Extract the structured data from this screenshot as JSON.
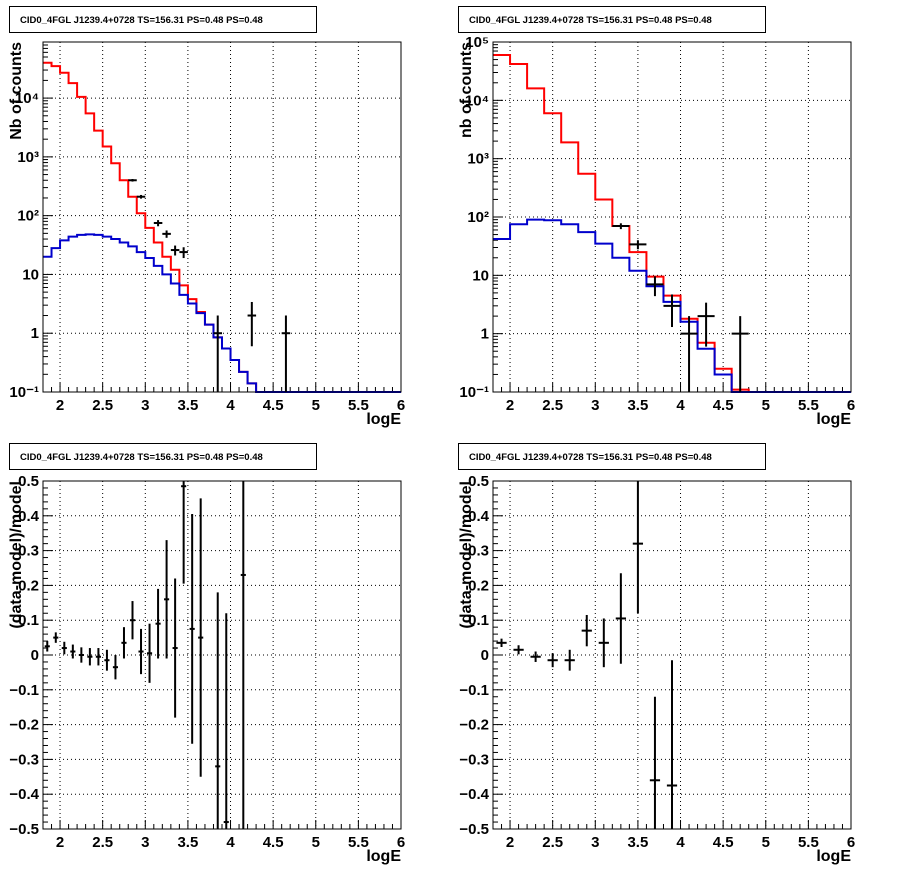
{
  "colors": {
    "data": "#000000",
    "model_total": "#ff0000",
    "model_bkg": "#0000cc",
    "grid": "#000000"
  },
  "chart_data": [
    {
      "type": "line",
      "title": "CID0_4FGL J1239.4+0728 TS=156.31 PS=0.48 PS=0.48",
      "xlabel": "logE",
      "ylabel": "Nb of counts",
      "yscale": "log",
      "xlim": [
        1.8,
        6
      ],
      "ylim": [
        0.1,
        90000
      ],
      "grid": true,
      "x_ticks": [
        "2",
        "2.5",
        "3",
        "3.5",
        "4",
        "4.5",
        "5",
        "5.5",
        "6"
      ],
      "y_ticks": [
        "10⁻¹",
        "1",
        "10",
        "10²",
        "10³",
        "10⁴"
      ],
      "bin_edges": [
        1.8,
        1.9,
        2.0,
        2.1,
        2.2,
        2.3,
        2.4,
        2.5,
        2.6,
        2.7,
        2.8,
        2.9,
        3.0,
        3.1,
        3.2,
        3.3,
        3.4,
        3.5,
        3.6,
        3.7,
        3.8,
        3.9,
        4.0,
        4.1,
        4.2,
        4.3,
        4.4,
        4.5,
        4.6,
        4.7,
        4.8,
        4.9,
        5.0,
        5.1,
        5.2,
        5.3,
        5.4,
        5.5,
        5.6,
        5.7,
        5.8,
        5.9,
        6.0
      ],
      "series": [
        {
          "name": "",
          "color": "#ff0000",
          "values": [
            40000,
            35000,
            27000,
            18000,
            10500,
            5500,
            2800,
            1500,
            780,
            400,
            210,
            110,
            62,
            35,
            20,
            12,
            6.5,
            3.8,
            2.3,
            1.4,
            0.85,
            0.55,
            0.35,
            0.22,
            0.14,
            0.1,
            0.1,
            0.1,
            0.1,
            0.1,
            0.1,
            0.1,
            0.1,
            0.1,
            0.1,
            0.1,
            0.1,
            0.1,
            0.1,
            0.1,
            0.1,
            0.1
          ]
        },
        {
          "name": "",
          "color": "#0000cc",
          "values": [
            20,
            28,
            38,
            44,
            47,
            48,
            47,
            44,
            40,
            35,
            30,
            24,
            19,
            14,
            10,
            7,
            4.5,
            3.2,
            2.2,
            1.4,
            0.85,
            0.55,
            0.35,
            0.22,
            0.14,
            0.1,
            0.1,
            0.1,
            0.1,
            0.1,
            0.1,
            0.1,
            0.1,
            0.1,
            0.1,
            0.1,
            0.1,
            0.1,
            0.1,
            0.1,
            0.1,
            0.1
          ]
        }
      ],
      "data_points": [
        {
          "x": 2.85,
          "y": 400,
          "yerr": 20
        },
        {
          "x": 2.95,
          "y": 210,
          "yerr": 15
        },
        {
          "x": 3.15,
          "y": 75,
          "yerr": 9
        },
        {
          "x": 3.25,
          "y": 49,
          "yerr": 7
        },
        {
          "x": 3.35,
          "y": 26,
          "yerr": 5
        },
        {
          "x": 3.45,
          "y": 24,
          "yerr": 5
        },
        {
          "x": 3.85,
          "y": 1,
          "yerr": 1
        },
        {
          "x": 4.25,
          "y": 2,
          "yerr": 1.4
        },
        {
          "x": 4.65,
          "y": 1,
          "yerr": 1
        }
      ]
    },
    {
      "type": "line",
      "title": "CID0_4FGL J1239.4+0728 TS=156.31 PS=0.48 PS=0.48",
      "xlabel": "logE",
      "ylabel": "nb of counts",
      "yscale": "log",
      "xlim": [
        1.8,
        6
      ],
      "ylim": [
        0.1,
        100000
      ],
      "grid": true,
      "x_ticks": [
        "2",
        "2.5",
        "3",
        "3.5",
        "4",
        "4.5",
        "5",
        "5.5",
        "6"
      ],
      "y_ticks": [
        "10⁻¹",
        "1",
        "10",
        "10²",
        "10³",
        "10⁴",
        "10⁵"
      ],
      "bin_edges": [
        1.8,
        2.0,
        2.2,
        2.4,
        2.6,
        2.8,
        3.0,
        3.2,
        3.4,
        3.6,
        3.8,
        4.0,
        4.2,
        4.4,
        4.6,
        4.8,
        5.0,
        5.2,
        5.4,
        5.6,
        5.8,
        6.0
      ],
      "series": [
        {
          "name": "",
          "color": "#ff0000",
          "values": [
            60000,
            42000,
            16000,
            6000,
            1900,
            550,
            200,
            70,
            25,
            9.5,
            4.5,
            1.8,
            0.7,
            0.25,
            0.11,
            0.1,
            0.1,
            0.1,
            0.1,
            0.1,
            0.1
          ]
        },
        {
          "name": "",
          "color": "#0000cc",
          "values": [
            42,
            75,
            90,
            88,
            75,
            55,
            35,
            20,
            12,
            6.5,
            3.5,
            1.6,
            0.55,
            0.2,
            0.1,
            0.1,
            0.1,
            0.1,
            0.1,
            0.1,
            0.1
          ]
        }
      ],
      "data_points": [
        {
          "x": 3.3,
          "y": 70,
          "yerr": 8
        },
        {
          "x": 3.5,
          "y": 34,
          "yerr": 6
        },
        {
          "x": 3.7,
          "y": 7,
          "yerr": 2.6
        },
        {
          "x": 3.9,
          "y": 3,
          "yerr": 1.7
        },
        {
          "x": 4.1,
          "y": 1,
          "yerr": 1
        },
        {
          "x": 4.3,
          "y": 2,
          "yerr": 1.4
        },
        {
          "x": 4.7,
          "y": 1,
          "yerr": 1
        }
      ]
    },
    {
      "type": "scatter",
      "title": "CID0_4FGL J1239.4+0728 TS=156.31 PS=0.48 PS=0.48",
      "xlabel": "logE",
      "ylabel": "(data-model)/model",
      "xlim": [
        1.8,
        6
      ],
      "ylim": [
        -0.5,
        0.5
      ],
      "grid": true,
      "x_ticks": [
        "2",
        "2.5",
        "3",
        "3.5",
        "4",
        "4.5",
        "5",
        "5.5",
        "6"
      ],
      "y_ticks": [
        "−0.5",
        "−0.4",
        "−0.3",
        "−0.2",
        "−0.1",
        "0",
        "0.1",
        "0.2",
        "0.3",
        "0.4",
        "0.5"
      ],
      "points": [
        {
          "x": 1.85,
          "y": 0.025,
          "yerr": 0.015,
          "xerr": 0.05
        },
        {
          "x": 1.95,
          "y": 0.05,
          "yerr": 0.015,
          "xerr": 0.05
        },
        {
          "x": 2.05,
          "y": 0.02,
          "yerr": 0.018,
          "xerr": 0.05
        },
        {
          "x": 2.15,
          "y": 0.01,
          "yerr": 0.02,
          "xerr": 0.05
        },
        {
          "x": 2.25,
          "y": 0.0,
          "yerr": 0.022,
          "xerr": 0.05
        },
        {
          "x": 2.35,
          "y": -0.005,
          "yerr": 0.025,
          "xerr": 0.05
        },
        {
          "x": 2.45,
          "y": -0.005,
          "yerr": 0.025,
          "xerr": 0.05
        },
        {
          "x": 2.55,
          "y": -0.015,
          "yerr": 0.03,
          "xerr": 0.05
        },
        {
          "x": 2.65,
          "y": -0.035,
          "yerr": 0.035,
          "xerr": 0.05
        },
        {
          "x": 2.75,
          "y": 0.035,
          "yerr": 0.045,
          "xerr": 0.05
        },
        {
          "x": 2.85,
          "y": 0.1,
          "yerr": 0.055,
          "xerr": 0.05
        },
        {
          "x": 2.95,
          "y": 0.01,
          "yerr": 0.065,
          "xerr": 0.05
        },
        {
          "x": 3.05,
          "y": 0.005,
          "yerr": 0.085,
          "xerr": 0.05
        },
        {
          "x": 3.15,
          "y": 0.09,
          "yerr": 0.1,
          "xerr": 0.05
        },
        {
          "x": 3.25,
          "y": 0.16,
          "yerr": 0.17,
          "xerr": 0.05
        },
        {
          "x": 3.35,
          "y": 0.02,
          "yerr": 0.2,
          "xerr": 0.05
        },
        {
          "x": 3.45,
          "y": 0.485,
          "yerr": 0.28,
          "xerr": 0.05
        },
        {
          "x": 3.55,
          "y": 0.075,
          "yerr": 0.33,
          "xerr": 0.05
        },
        {
          "x": 3.65,
          "y": 0.05,
          "yerr": 0.4,
          "xerr": 0.05
        },
        {
          "x": 3.85,
          "y": -0.32,
          "yerr": 0.5,
          "xerr": 0.05
        },
        {
          "x": 3.95,
          "y": -0.48,
          "yerr": 0.6,
          "xerr": 0.05
        },
        {
          "x": 4.15,
          "y": 0.23,
          "yerr": 0.9,
          "xerr": 0.05
        }
      ]
    },
    {
      "type": "scatter",
      "title": "CID0_4FGL J1239.4+0728 TS=156.31 PS=0.48 PS=0.48",
      "xlabel": "logE",
      "ylabel": "(data-model)/model",
      "xlim": [
        1.8,
        6
      ],
      "ylim": [
        -0.5,
        0.5
      ],
      "grid": true,
      "x_ticks": [
        "2",
        "2.5",
        "3",
        "3.5",
        "4",
        "4.5",
        "5",
        "5.5",
        "6"
      ],
      "y_ticks": [
        "−0.5",
        "−0.4",
        "−0.3",
        "−0.2",
        "−0.1",
        "0",
        "0.1",
        "0.2",
        "0.3",
        "0.4",
        "0.5"
      ],
      "points": [
        {
          "x": 1.9,
          "y": 0.035,
          "yerr": 0.012,
          "xerr": 0.1
        },
        {
          "x": 2.1,
          "y": 0.015,
          "yerr": 0.013,
          "xerr": 0.1
        },
        {
          "x": 2.3,
          "y": -0.005,
          "yerr": 0.015,
          "xerr": 0.1
        },
        {
          "x": 2.5,
          "y": -0.015,
          "yerr": 0.02,
          "xerr": 0.1
        },
        {
          "x": 2.7,
          "y": -0.015,
          "yerr": 0.03,
          "xerr": 0.1
        },
        {
          "x": 2.9,
          "y": 0.07,
          "yerr": 0.045,
          "xerr": 0.1
        },
        {
          "x": 3.1,
          "y": 0.035,
          "yerr": 0.07,
          "xerr": 0.1
        },
        {
          "x": 3.3,
          "y": 0.105,
          "yerr": 0.13,
          "xerr": 0.1
        },
        {
          "x": 3.5,
          "y": 0.32,
          "yerr": 0.2,
          "xerr": 0.1
        },
        {
          "x": 3.7,
          "y": -0.36,
          "yerr": 0.24,
          "xerr": 0.1
        },
        {
          "x": 3.9,
          "y": -0.375,
          "yerr": 0.36,
          "xerr": 0.1
        }
      ]
    }
  ]
}
